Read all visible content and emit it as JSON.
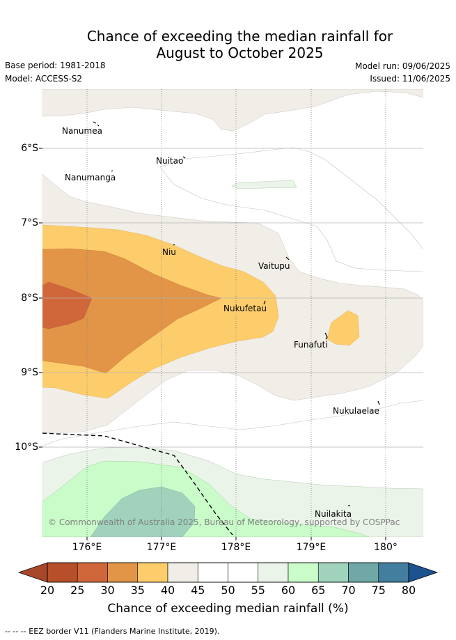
{
  "title": {
    "line1": "Chance of exceeding the median rainfall for",
    "line2": "August to October 2025"
  },
  "info": {
    "base_period": "Base period: 1981-2018",
    "model": "Model: ACCESS-S2",
    "model_run": "Model run: 09/06/2025",
    "issued": "Issued: 11/06/2025"
  },
  "map": {
    "latitude_labels": [
      "6°S",
      "7°S",
      "8°S",
      "9°S",
      "10°S"
    ],
    "longitude_labels": [
      "176°E",
      "177°E",
      "178°E",
      "179°E",
      "180°"
    ],
    "places": [
      "Nanumea",
      "Nuitao",
      "Nanumanga",
      "Niu",
      "Vaitupu",
      "Nukufetau",
      "Funafuti",
      "Nukulaelae",
      "Nuilakita"
    ],
    "copyright": "© Commonwealth of Australia 2025, Bureau of Meteorology, supported by COSPPac"
  },
  "colorbar": {
    "ticks": [
      "20",
      "25",
      "30",
      "35",
      "40",
      "45",
      "50",
      "55",
      "60",
      "65",
      "70",
      "75",
      "80"
    ],
    "colors": [
      "#b74f2a",
      "#d0673a",
      "#e29547",
      "#fecd6b",
      "#f1ede7",
      "#ffffff",
      "#ffffff",
      "#ebf4e9",
      "#c9fcc9",
      "#a0d2bc",
      "#70a8a8",
      "#447e9e"
    ],
    "under_color": "#a9472a",
    "over_color": "#1d5290",
    "label": "Chance of exceeding median rainfall (%)"
  },
  "legend_note": "-- -- -- EEZ border V11 (Flanders Marine Institute, 2019)."
}
